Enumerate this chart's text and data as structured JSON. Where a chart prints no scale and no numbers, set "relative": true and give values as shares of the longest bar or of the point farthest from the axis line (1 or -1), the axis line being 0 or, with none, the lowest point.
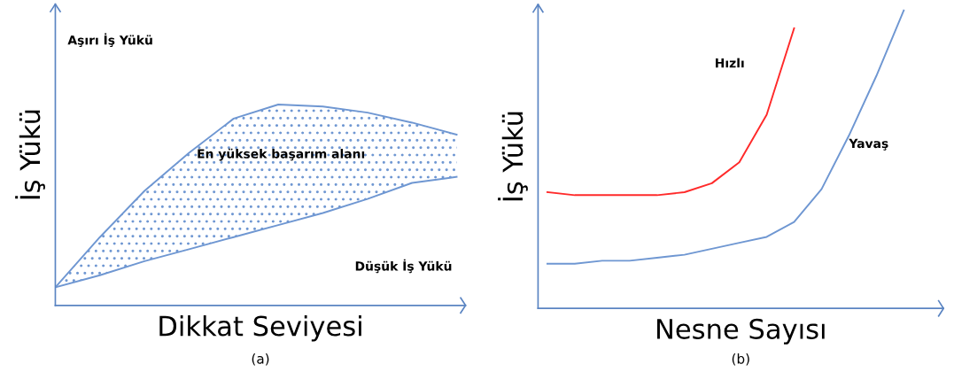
{
  "chart_data": [
    {
      "type": "line",
      "relative": true,
      "xlabel": "Dikkat Seviyesi",
      "ylabel": "İş Yükü",
      "legend": false,
      "marker": "none",
      "line_style": "solid",
      "categories": [
        null,
        null,
        null,
        null,
        null,
        null,
        null,
        null,
        null,
        null
      ],
      "annotations": [
        "Aşırı İş Yükü",
        "En yüksek başarım alanı",
        "Düşük İş Yükü",
        "(a)"
      ],
      "series": [
        {
          "color": "#6f97d2",
          "values": [
            0.09,
            0.34,
            0.57,
            0.76,
            0.93,
            1.0,
            0.99,
            0.96,
            0.91,
            0.85
          ],
          "lower": [
            0.09,
            0.15,
            0.22,
            0.28,
            0.34,
            0.4,
            0.46,
            0.53,
            0.61,
            0.64
          ],
          "upper": [
            0.09,
            0.34,
            0.57,
            0.76,
            0.93,
            1.0,
            0.99,
            0.96,
            0.91,
            0.85
          ]
        },
        {
          "color": "#6f97d2",
          "values": [
            0.09,
            0.15,
            0.22,
            0.28,
            0.34,
            0.4,
            0.46,
            0.53,
            0.61,
            0.64
          ]
        }
      ]
    },
    {
      "type": "line",
      "relative": true,
      "xlabel": "Nesne Sayısı",
      "ylabel": "İş Yükü",
      "legend": false,
      "marker": "none",
      "line_style": "solid",
      "categories": [
        null,
        null,
        null,
        null,
        null,
        null,
        null,
        null,
        null,
        null,
        null,
        null,
        null,
        null
      ],
      "annotations": [
        "(b)"
      ],
      "series": [
        {
          "name": "Hızlı",
          "color": "#ff2a2a",
          "values": [
            0.39,
            0.38,
            0.38,
            0.38,
            0.38,
            0.39,
            0.42,
            0.49,
            0.65,
            0.94,
            null,
            null,
            null,
            null
          ]
        },
        {
          "name": "Yavaş",
          "color": "#6f97d2",
          "values": [
            0.15,
            0.15,
            0.16,
            0.16,
            0.17,
            0.18,
            0.2,
            0.22,
            0.24,
            0.29,
            0.4,
            0.58,
            0.78,
            1.0
          ]
        }
      ]
    }
  ]
}
